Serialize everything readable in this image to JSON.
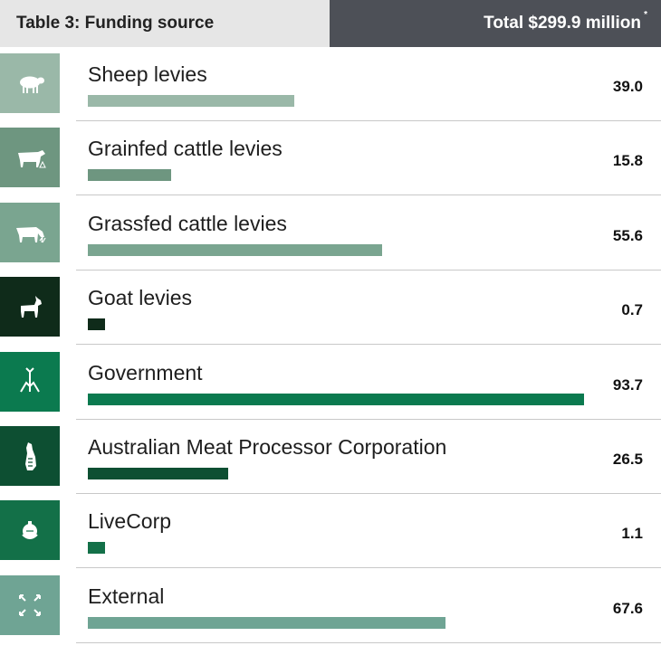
{
  "header": {
    "title": "Table 3: Funding source",
    "total": "Total $299.9 million",
    "total_mark": "*"
  },
  "chart_data": {
    "type": "bar",
    "orientation": "horizontal",
    "categories": [
      "Sheep levies",
      "Grainfed cattle levies",
      "Grassfed cattle levies",
      "Goat levies",
      "Government",
      "Australian Meat Processor Corporation",
      "LiveCorp",
      "External"
    ],
    "values": [
      39.0,
      15.8,
      55.6,
      0.7,
      93.7,
      26.5,
      1.1,
      67.6
    ],
    "value_labels": [
      "39.0",
      "15.8",
      "55.6",
      "0.7",
      "93.7",
      "26.5",
      "1.1",
      "67.6"
    ],
    "colors": [
      "#9ab8a8",
      "#6e9680",
      "#7aa590",
      "#0f2b1a",
      "#0b7a4f",
      "#0d4f32",
      "#137048",
      "#6fa494"
    ],
    "icons": [
      "sheep-icon",
      "grainfed-cattle-icon",
      "grassfed-cattle-icon",
      "goat-icon",
      "government-icon",
      "processor-icon",
      "livecorp-icon",
      "external-icon"
    ],
    "xlim": [
      0,
      93.7
    ],
    "grid": false,
    "legend": "none"
  }
}
